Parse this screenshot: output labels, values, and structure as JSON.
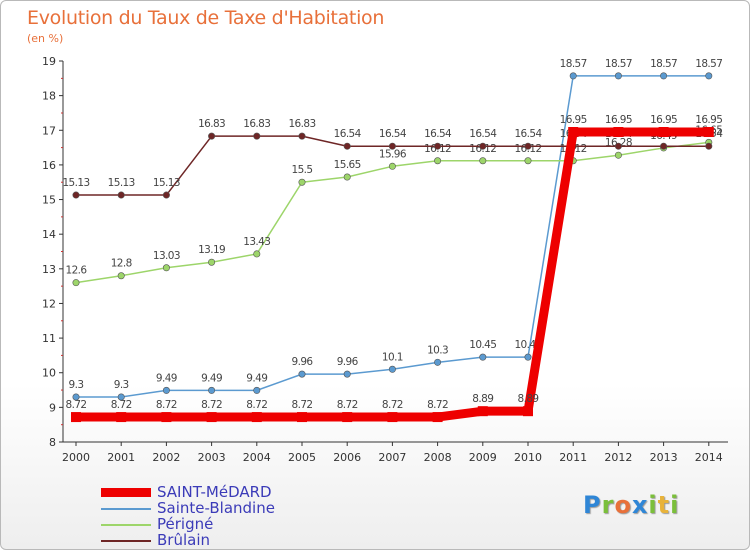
{
  "title": "Evolution du Taux de Taxe d'Habitation",
  "unit": "(en %)",
  "logo": {
    "text": "Proxiti",
    "letters": [
      {
        "ch": "P",
        "color": "#2f86d6"
      },
      {
        "ch": "r",
        "color": "#7bbf3a"
      },
      {
        "ch": "o",
        "color": "#e8703a"
      },
      {
        "ch": "x",
        "color": "#2f86d6"
      },
      {
        "ch": "i",
        "color": "#7bbf3a"
      },
      {
        "ch": "t",
        "color": "#e8b33a"
      },
      {
        "ch": "i",
        "color": "#7bbf3a"
      }
    ]
  },
  "chart_data": {
    "type": "line",
    "title": "Evolution du Taux de Taxe d'Habitation",
    "ylabel": "(en %)",
    "xlabel": "",
    "x": [
      "2000",
      "2001",
      "2002",
      "2003",
      "2004",
      "2005",
      "2006",
      "2007",
      "2008",
      "2009",
      "2010",
      "2011",
      "2012",
      "2013",
      "2014"
    ],
    "ylim": [
      8,
      19
    ],
    "yticks": [
      8,
      9,
      10,
      11,
      12,
      13,
      14,
      15,
      16,
      17,
      18,
      19
    ],
    "grid": false,
    "legend_position": "bottom-left",
    "series": [
      {
        "name": "Sainte-Blandine",
        "color": "#5b9ad0",
        "values": [
          9.3,
          9.3,
          9.49,
          9.49,
          9.49,
          9.96,
          9.96,
          10.1,
          10.3,
          10.45,
          10.45,
          18.57,
          18.57,
          18.57,
          18.57
        ],
        "labels": [
          "9.3",
          "9.3",
          "9.49",
          "9.49",
          "9.49",
          "9.96",
          "9.96",
          "10.1",
          "10.3",
          "10.45",
          "10.45",
          "18.57",
          "18.57",
          "18.57",
          "18.57"
        ]
      },
      {
        "name": "Périgné",
        "color": "#9dd56a",
        "values": [
          12.6,
          12.8,
          13.03,
          13.19,
          13.43,
          15.5,
          15.65,
          15.96,
          16.12,
          16.12,
          16.12,
          16.12,
          16.28,
          16.49,
          16.65
        ],
        "labels": [
          "12.6",
          "12.8",
          "13.03",
          "13.19",
          "13.43",
          "15.5",
          "15.65",
          "15.96",
          "16.12",
          "16.12",
          "16.12",
          "16.12",
          "16.28",
          "16.49",
          "16.65"
        ]
      },
      {
        "name": "Brûlain",
        "color": "#6e2626",
        "values": [
          15.13,
          15.13,
          15.13,
          16.83,
          16.83,
          16.83,
          16.54,
          16.54,
          16.54,
          16.54,
          16.54,
          16.54,
          16.54,
          16.54,
          16.54
        ],
        "labels": [
          "15.13",
          "15.13",
          "15.13",
          "16.83",
          "16.83",
          "16.83",
          "16.54",
          "16.54",
          "16.54",
          "16.54",
          "16.54",
          "16.54",
          "16.54",
          "16.54",
          "16.54"
        ]
      },
      {
        "name": "SAINT-MéDARD",
        "color": "#ee0000",
        "values": [
          8.72,
          8.72,
          8.72,
          8.72,
          8.72,
          8.72,
          8.72,
          8.72,
          8.72,
          8.89,
          8.89,
          16.95,
          16.95,
          16.95,
          16.95
        ],
        "labels": [
          "8.72",
          "8.72",
          "8.72",
          "8.72",
          "8.72",
          "8.72",
          "8.72",
          "8.72",
          "8.72",
          "8.89",
          "8.89",
          "16.95",
          "16.95",
          "16.95",
          "16.95"
        ]
      }
    ],
    "legend": [
      "SAINT-MéDARD",
      "Sainte-Blandine",
      "Périgné",
      "Brûlain"
    ]
  }
}
